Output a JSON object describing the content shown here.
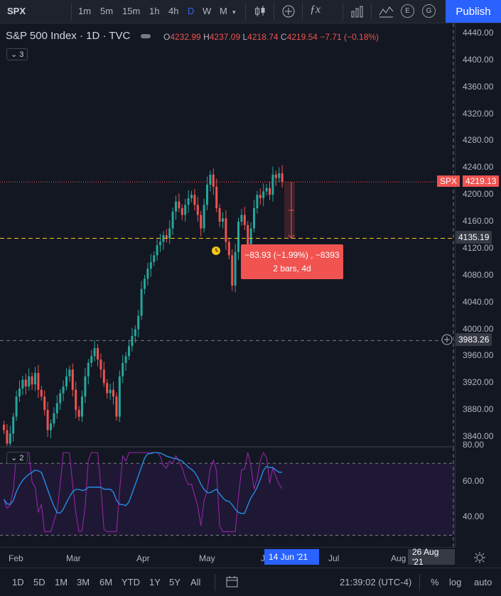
{
  "toolbar": {
    "symbol": "SPX",
    "intervals": [
      "1m",
      "5m",
      "15m",
      "1h",
      "4h",
      "D",
      "W",
      "M"
    ],
    "active_interval": "D",
    "publish": "Publish",
    "circle_icons": [
      "E",
      "G"
    ]
  },
  "legend": {
    "title": "S&P 500 Index · 1D · TVC",
    "o_key": "O",
    "o": "4232.99",
    "h_key": "H",
    "h": "4237.09",
    "l_key": "L",
    "l": "4218.74",
    "c_key": "C",
    "c": "4219.54",
    "change": "−7.71 (−0.18%)",
    "indicator_count": "3",
    "pane2_count": "2"
  },
  "price_axis": {
    "ticks": [
      "4440.00",
      "4400.00",
      "4360.00",
      "4320.00",
      "4280.00",
      "4240.00",
      "4200.00",
      "4160.00",
      "4120.00",
      "4080.00",
      "4040.00",
      "4000.00",
      "3960.00",
      "3920.00",
      "3880.00",
      "3840.00"
    ],
    "last_label": "SPX",
    "last_value": "4219.13",
    "target_value": "4135.19",
    "crosshair_value": "3983.26",
    "pane2_ticks": [
      "80.00",
      "60.00",
      "40.00"
    ]
  },
  "measure": {
    "line1": "−83.93 (−1.99%) , −8393",
    "line2": "2 bars, 4d"
  },
  "time_axis": {
    "ticks": [
      "Feb",
      "Mar",
      "Apr",
      "May",
      "J",
      "Jul",
      "Aug"
    ],
    "selected_start": "14 Jun '21",
    "selected_end": "26 Aug '21"
  },
  "bottom_bar": {
    "ranges": [
      "1D",
      "5D",
      "1M",
      "3M",
      "6M",
      "YTD",
      "1Y",
      "5Y",
      "All"
    ],
    "time": "21:39:02 (UTC-4)",
    "percent": "%",
    "log": "log",
    "auto": "auto"
  },
  "colors": {
    "up": "#26a69a",
    "down": "#ef5350",
    "rsi": "#9c27b0",
    "rsi_ma": "#2196f3",
    "background": "#131722",
    "accent": "#2962ff",
    "target_line": "#f5c518"
  },
  "chart_data": {
    "type": "candlestick",
    "symbol": "SPX",
    "interval": "1D",
    "ylim": [
      3820,
      4460
    ],
    "ohlc_last": {
      "open": 4232.99,
      "high": 4237.09,
      "low": 4218.74,
      "close": 4219.54
    },
    "close_series_approx": [
      3850,
      3830,
      3845,
      3870,
      3900,
      3912,
      3925,
      3915,
      3930,
      3918,
      3935,
      3910,
      3900,
      3880,
      3850,
      3860,
      3875,
      3890,
      3905,
      3915,
      3930,
      3940,
      3910,
      3880,
      3870,
      3900,
      3930,
      3950,
      3960,
      3972,
      3955,
      3940,
      3920,
      3905,
      3910,
      3900,
      3870,
      3930,
      3950,
      3960,
      3975,
      3990,
      4000,
      4020,
      4060,
      4075,
      4090,
      4100,
      4110,
      4125,
      4130,
      4140,
      4135,
      4150,
      4175,
      4190,
      4180,
      4170,
      4185,
      4195,
      4200,
      4185,
      4170,
      4150,
      4185,
      4215,
      4230,
      4212,
      4180,
      4160,
      4165,
      4130,
      4110,
      4065,
      4115,
      4160,
      4170,
      4155,
      4120,
      4150,
      4180,
      4200,
      4195,
      4205,
      4210,
      4200,
      4230,
      4225,
      4232,
      4219
    ]
  }
}
